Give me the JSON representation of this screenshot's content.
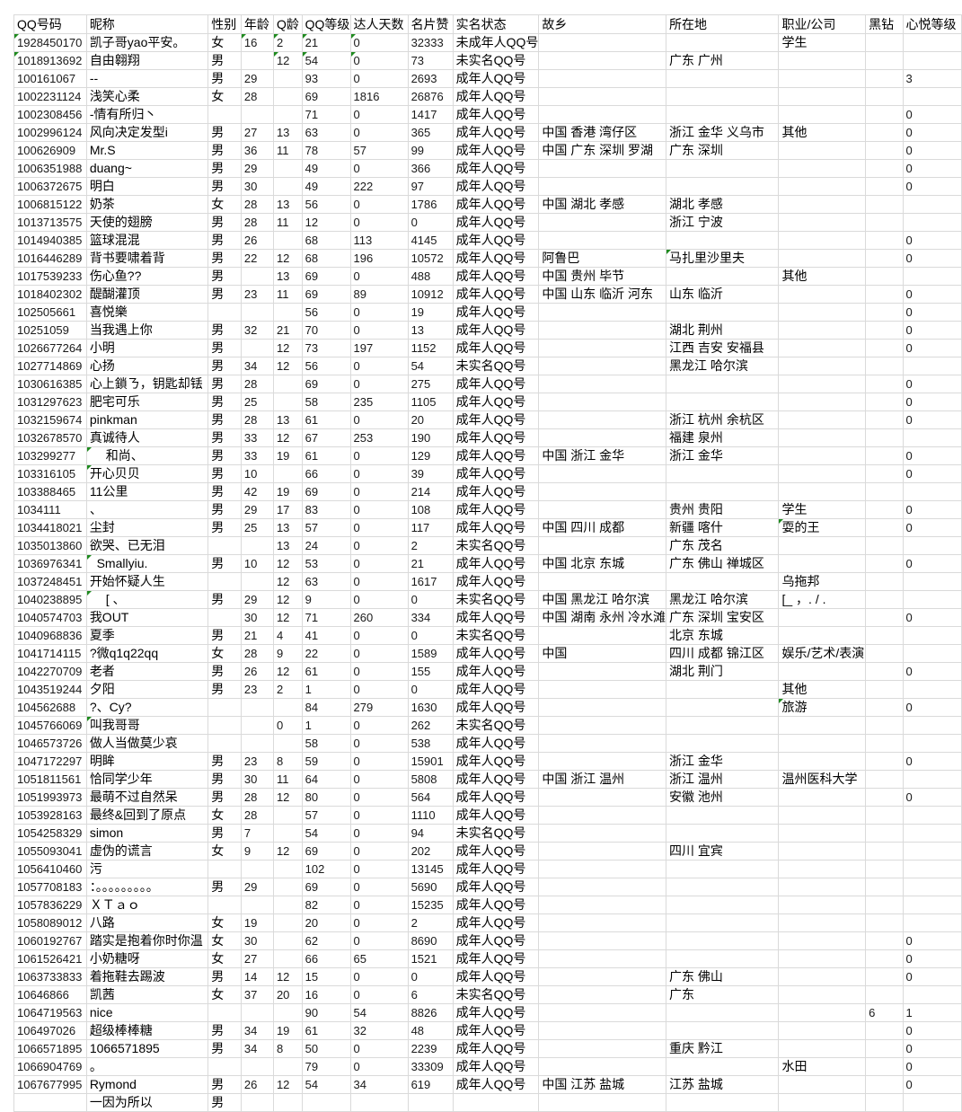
{
  "sheet": {
    "headers": [
      "QQ号码",
      "昵称",
      "性别",
      "年龄",
      "Q龄",
      "QQ等级",
      "达人天数",
      "名片赞",
      "实名状态",
      "故乡",
      "所在地",
      "职业/公司",
      "黑钻",
      "心悦等级"
    ],
    "flag_color": "#1e8a1e",
    "rows": [
      {
        "cells": [
          "1928450170",
          "凯子哥yao平安。",
          "女",
          "16",
          "2",
          "21",
          "0",
          "32333",
          "未成年人QQ号",
          "",
          "",
          "学生",
          "",
          ""
        ],
        "flags": [
          0,
          3,
          4,
          5,
          6
        ]
      },
      {
        "cells": [
          "1018913692",
          "自由翱翔",
          "男",
          "",
          "12",
          "54",
          "0",
          "73",
          "未实名QQ号",
          "",
          "广东 广州",
          "",
          "",
          ""
        ],
        "flags": [
          0,
          4,
          5,
          6
        ]
      },
      {
        "cells": [
          "100161067",
          "--",
          "男",
          "29",
          "",
          "93",
          "0",
          "2693",
          "成年人QQ号",
          "",
          "",
          "",
          "",
          "3"
        ]
      },
      {
        "cells": [
          "1002231124",
          "浅笑心柔",
          "女",
          "28",
          "",
          "69",
          "1816",
          "26876",
          "成年人QQ号",
          "",
          "",
          "",
          "",
          ""
        ]
      },
      {
        "cells": [
          "1002308456",
          "-情有所归丶",
          "",
          "",
          "",
          "71",
          "0",
          "1417",
          "成年人QQ号",
          "",
          "",
          "",
          "",
          "0"
        ]
      },
      {
        "cells": [
          "1002996124",
          "风向决定发型i",
          "男",
          "27",
          "13",
          "63",
          "0",
          "365",
          "成年人QQ号",
          "中国 香港 湾仔区",
          "浙江 金华 义乌市",
          "其他",
          "",
          "0"
        ]
      },
      {
        "cells": [
          "100626909",
          "Mr.S",
          "男",
          "36",
          "11",
          "78",
          "57",
          "99",
          "成年人QQ号",
          "中国 广东 深圳 罗湖",
          "广东 深圳",
          "",
          "",
          "0"
        ]
      },
      {
        "cells": [
          "1006351988",
          "duang~",
          "男",
          "29",
          "",
          "49",
          "0",
          "366",
          "成年人QQ号",
          "",
          "",
          "",
          "",
          "0"
        ]
      },
      {
        "cells": [
          "1006372675",
          "明白",
          "男",
          "30",
          "",
          "49",
          "222",
          "97",
          "成年人QQ号",
          "",
          "",
          "",
          "",
          "0"
        ]
      },
      {
        "cells": [
          "1006815122",
          "奶茶",
          "女",
          "28",
          "13",
          "56",
          "0",
          "1786",
          "成年人QQ号",
          "中国 湖北 孝感",
          "湖北 孝感",
          "",
          "",
          ""
        ]
      },
      {
        "cells": [
          "1013713575",
          "天使的翅膀",
          "男",
          "28",
          "11",
          "12",
          "0",
          "0",
          "成年人QQ号",
          "",
          "浙江 宁波",
          "",
          "",
          ""
        ]
      },
      {
        "cells": [
          "1014940385",
          "篮球混混",
          "男",
          "26",
          "",
          "68",
          "113",
          "4145",
          "成年人QQ号",
          "",
          "",
          "",
          "",
          "0"
        ]
      },
      {
        "cells": [
          "1016446289",
          "背书要啸着背",
          "男",
          "22",
          "12",
          "68",
          "196",
          "10572",
          "成年人QQ号",
          "阿鲁巴",
          "马扎里沙里夫",
          "",
          "",
          "0"
        ],
        "flags": [
          10
        ]
      },
      {
        "cells": [
          "1017539233",
          "伤心鱼??",
          "男",
          "",
          "13",
          "69",
          "0",
          "488",
          "成年人QQ号",
          "中国 贵州 毕节",
          "",
          "其他",
          "",
          ""
        ]
      },
      {
        "cells": [
          "1018402302",
          "醍醐灌顶",
          "男",
          "23",
          "11",
          "69",
          "89",
          "10912",
          "成年人QQ号",
          "中国 山东 临沂 河东",
          "山东 临沂",
          "",
          "",
          "0"
        ]
      },
      {
        "cells": [
          "102505661",
          "喜悦樂",
          "",
          "",
          "",
          "56",
          "0",
          "19",
          "成年人QQ号",
          "",
          "",
          "",
          "",
          "0"
        ]
      },
      {
        "cells": [
          "10251059",
          "当我遇上你",
          "男",
          "32",
          "21",
          "70",
          "0",
          "13",
          "成年人QQ号",
          "",
          "湖北 荆州",
          "",
          "",
          "0"
        ]
      },
      {
        "cells": [
          "1026677264",
          "小明",
          "男",
          "",
          "12",
          "73",
          "197",
          "1152",
          "成年人QQ号",
          "",
          "江西 吉安 安福县",
          "",
          "",
          "0"
        ]
      },
      {
        "cells": [
          "1027714869",
          "心扬",
          "男",
          "34",
          "12",
          "56",
          "0",
          "54",
          "未实名QQ号",
          "",
          "黑龙江 哈尔滨",
          "",
          "",
          ""
        ]
      },
      {
        "cells": [
          "1030616385",
          "心上鎖ㄋ，钥匙却铥",
          "男",
          "28",
          "",
          "69",
          "0",
          "275",
          "成年人QQ号",
          "",
          "",
          "",
          "",
          "0"
        ]
      },
      {
        "cells": [
          "1031297623",
          "肥宅可乐",
          "男",
          "25",
          "",
          "58",
          "235",
          "1105",
          "成年人QQ号",
          "",
          "",
          "",
          "",
          "0"
        ]
      },
      {
        "cells": [
          "1032159674",
          "pinkman",
          "男",
          "28",
          "13",
          "61",
          "0",
          "20",
          "成年人QQ号",
          "",
          "浙江 杭州 余杭区",
          "",
          "",
          "0"
        ]
      },
      {
        "cells": [
          "1032678570",
          "真诚待人",
          "男",
          "33",
          "12",
          "67",
          "253",
          "190",
          "成年人QQ号",
          "",
          "福建 泉州",
          "",
          "",
          ""
        ]
      },
      {
        "cells": [
          "103299277",
          "　 和尚、",
          "男",
          "33",
          "19",
          "61",
          "0",
          "129",
          "成年人QQ号",
          "中国 浙江 金华",
          "浙江 金华",
          "",
          "",
          "0"
        ],
        "flags": [
          1
        ]
      },
      {
        "cells": [
          "103316105",
          "开心贝贝",
          "男",
          "10",
          "",
          "66",
          "0",
          "39",
          "成年人QQ号",
          "",
          "",
          "",
          "",
          "0"
        ],
        "flags": [
          1
        ]
      },
      {
        "cells": [
          "103388465",
          "11公里",
          "男",
          "42",
          "19",
          "69",
          "0",
          "214",
          "成年人QQ号",
          "",
          "",
          "",
          "",
          ""
        ]
      },
      {
        "cells": [
          "1034111",
          "、",
          "男",
          "29",
          "17",
          "83",
          "0",
          "108",
          "成年人QQ号",
          "",
          "贵州 贵阳",
          "学生",
          "",
          "0"
        ]
      },
      {
        "cells": [
          "1034418021",
          "尘封",
          "男",
          "25",
          "13",
          "57",
          "0",
          "117",
          "成年人QQ号",
          "中国 四川 成都",
          "新疆 喀什",
          "耍的王",
          "",
          "0"
        ],
        "flags": [
          11
        ]
      },
      {
        "cells": [
          "1035013860",
          "欲哭、已无泪",
          "",
          "",
          "13",
          "24",
          "0",
          "2",
          "未实名QQ号",
          "",
          "广东 茂名",
          "",
          "",
          ""
        ]
      },
      {
        "cells": [
          "1036976341",
          "  Smallyiu.",
          "男",
          "10",
          "12",
          "53",
          "0",
          "21",
          "成年人QQ号",
          "中国 北京 东城",
          "广东 佛山 禅城区",
          "",
          "",
          "0"
        ],
        "flags": [
          1
        ]
      },
      {
        "cells": [
          "1037248451",
          "开始怀疑人生",
          "",
          "",
          "12",
          "63",
          "0",
          "1617",
          "成年人QQ号",
          "",
          "",
          "乌拖邦",
          "",
          ""
        ]
      },
      {
        "cells": [
          "1040238895",
          "　 [ 、",
          "男",
          "29",
          "12",
          "9",
          "0",
          "0",
          "未实名QQ号",
          "中国 黑龙江 哈尔滨",
          "黑龙江 哈尔滨",
          "[_ ，. / .",
          "",
          ""
        ],
        "flags": [
          1
        ]
      },
      {
        "cells": [
          "1040574703",
          "我OUT",
          "",
          "30",
          "12",
          "71",
          "260",
          "334",
          "成年人QQ号",
          "中国 湖南 永州 冷水滩",
          "广东 深圳 宝安区",
          "",
          "",
          "0"
        ]
      },
      {
        "cells": [
          "1040968836",
          "夏季",
          "男",
          "21",
          "4",
          "41",
          "0",
          "0",
          "未实名QQ号",
          "",
          "北京 东城",
          "",
          "",
          ""
        ]
      },
      {
        "cells": [
          "1041714115",
          "?微q1q22qq",
          "女",
          "28",
          "9",
          "22",
          "0",
          "1589",
          "成年人QQ号",
          "中国",
          "四川 成都 锦江区",
          "娱乐/艺术/表演",
          "",
          ""
        ]
      },
      {
        "cells": [
          "1042270709",
          "老者",
          "男",
          "26",
          "12",
          "61",
          "0",
          "155",
          "成年人QQ号",
          "",
          "湖北 荆门",
          "",
          "",
          "0"
        ]
      },
      {
        "cells": [
          "1043519244",
          "夕阳",
          "男",
          "23",
          "2",
          "1",
          "0",
          "0",
          "成年人QQ号",
          "",
          "",
          "其他",
          "",
          ""
        ]
      },
      {
        "cells": [
          "104562688",
          "?、Cy?",
          "",
          "",
          "",
          "84",
          "279",
          "1630",
          "成年人QQ号",
          "",
          "",
          "旅游",
          "",
          "0"
        ],
        "flags": [
          11
        ]
      },
      {
        "cells": [
          "1045766069",
          "叫我哥哥",
          "",
          "",
          "0",
          "1",
          "0",
          "262",
          "未实名QQ号",
          "",
          "",
          "",
          "",
          ""
        ],
        "flags": [
          1
        ]
      },
      {
        "cells": [
          "1046573726",
          "做人当做莫少哀",
          "",
          "",
          "",
          "58",
          "0",
          "538",
          "成年人QQ号",
          "",
          "",
          "",
          "",
          ""
        ]
      },
      {
        "cells": [
          "1047172297",
          "明眸",
          "男",
          "23",
          "8",
          "59",
          "0",
          "15901",
          "成年人QQ号",
          "",
          "浙江 金华",
          "",
          "",
          "0"
        ]
      },
      {
        "cells": [
          "1051811561",
          "恰同学少年",
          "男",
          "30",
          "11",
          "64",
          "0",
          "5808",
          "成年人QQ号",
          "中国 浙江 温州",
          "浙江 温州",
          "温州医科大学",
          "",
          ""
        ]
      },
      {
        "cells": [
          "1051993973",
          "最萌不过自然呆",
          "男",
          "28",
          "12",
          "80",
          "0",
          "564",
          "成年人QQ号",
          "",
          "安徽 池州",
          "",
          "",
          "0"
        ]
      },
      {
        "cells": [
          "1053928163",
          "最终&回到了原点",
          "女",
          "28",
          "",
          "57",
          "0",
          "1110",
          "成年人QQ号",
          "",
          "",
          "",
          "",
          ""
        ]
      },
      {
        "cells": [
          "1054258329",
          "simon",
          "男",
          "7",
          "",
          "54",
          "0",
          "94",
          "未实名QQ号",
          "",
          "",
          "",
          "",
          ""
        ]
      },
      {
        "cells": [
          "1055093041",
          "虚伪的谎言",
          "女",
          "9",
          "12",
          "69",
          "0",
          "202",
          "成年人QQ号",
          "",
          "四川 宜宾",
          "",
          "",
          ""
        ]
      },
      {
        "cells": [
          "1056410460",
          "污",
          "",
          "",
          "",
          "102",
          "0",
          "13145",
          "成年人QQ号",
          "",
          "",
          "",
          "",
          ""
        ]
      },
      {
        "cells": [
          "1057708183",
          "：。。。。。。。。。",
          "男",
          "29",
          "",
          "69",
          "0",
          "5690",
          "成年人QQ号",
          "",
          "",
          "",
          "",
          ""
        ]
      },
      {
        "cells": [
          "1057836229",
          "ＸＴａｏ",
          "",
          "",
          "",
          "82",
          "0",
          "15235",
          "成年人QQ号",
          "",
          "",
          "",
          "",
          ""
        ]
      },
      {
        "cells": [
          "1058089012",
          "八路",
          "女",
          "19",
          "",
          "20",
          "0",
          "2",
          "成年人QQ号",
          "",
          "",
          "",
          "",
          ""
        ]
      },
      {
        "cells": [
          "1060192767",
          "踏实是抱着你时你温",
          "女",
          "30",
          "",
          "62",
          "0",
          "8690",
          "成年人QQ号",
          "",
          "",
          "",
          "",
          "0"
        ]
      },
      {
        "cells": [
          "1061526421",
          "小奶糖呀",
          "女",
          "27",
          "",
          "66",
          "65",
          "1521",
          "成年人QQ号",
          "",
          "",
          "",
          "",
          "0"
        ]
      },
      {
        "cells": [
          "1063733833",
          "着拖鞋去踢波",
          "男",
          "14",
          "12",
          "15",
          "0",
          "0",
          "成年人QQ号",
          "",
          "广东 佛山",
          "",
          "",
          "0"
        ]
      },
      {
        "cells": [
          "10646866",
          "凯茜",
          "女",
          "37",
          "20",
          "16",
          "0",
          "6",
          "未实名QQ号",
          "",
          "广东",
          "",
          "",
          ""
        ]
      },
      {
        "cells": [
          "1064719563",
          "nice",
          "",
          "",
          "",
          "90",
          "54",
          "8826",
          "成年人QQ号",
          "",
          "",
          "",
          "6",
          "1"
        ]
      },
      {
        "cells": [
          "106497026",
          "超级棒棒糖",
          "男",
          "34",
          "19",
          "61",
          "32",
          "48",
          "成年人QQ号",
          "",
          "",
          "",
          "",
          "0"
        ]
      },
      {
        "cells": [
          "1066571895",
          "1066571895",
          "男",
          "34",
          "8",
          "50",
          "0",
          "2239",
          "成年人QQ号",
          "",
          "重庆 黔江",
          "",
          "",
          "0"
        ]
      },
      {
        "cells": [
          "1066904769",
          "。",
          "",
          "",
          "",
          "79",
          "0",
          "33309",
          "成年人QQ号",
          "",
          "",
          "水田",
          "",
          "0"
        ]
      },
      {
        "cells": [
          "1067677995",
          "Rymond",
          "男",
          "26",
          "12",
          "54",
          "34",
          "619",
          "成年人QQ号",
          "中国 江苏 盐城",
          "江苏 盐城",
          "",
          "",
          "0"
        ]
      },
      {
        "cells": [
          "",
          "一因为所以",
          "男",
          "",
          "",
          "",
          "",
          "",
          "",
          "",
          "",
          "",
          "",
          ""
        ]
      }
    ]
  }
}
